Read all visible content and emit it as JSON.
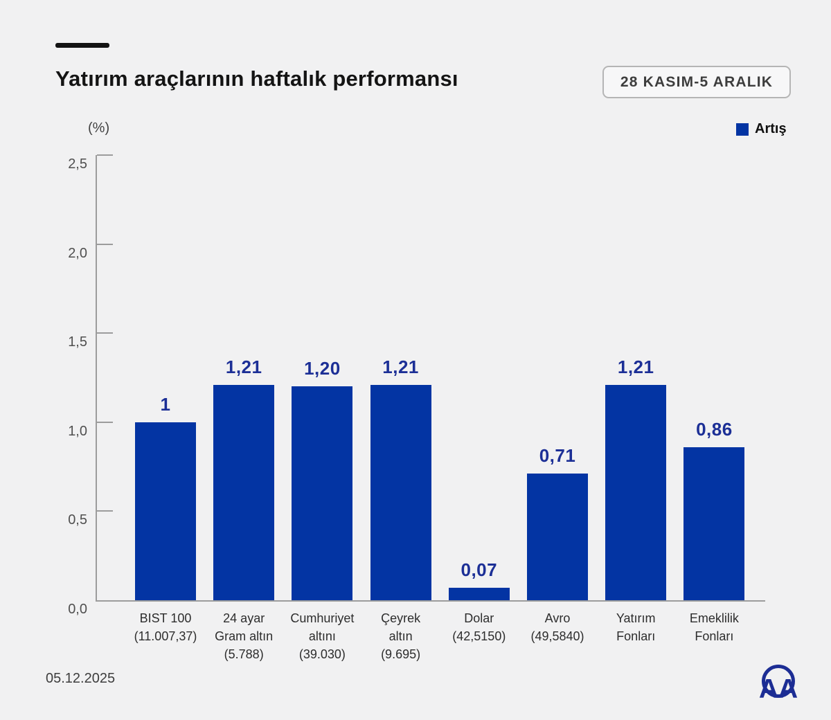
{
  "header": {
    "title": "Yatırım araçlarının haftalık performansı",
    "date_badge": "28 KASIM-5 ARALIK"
  },
  "legend": {
    "label": "Artış"
  },
  "chart_data": {
    "type": "bar",
    "title": "Yatırım araçlarının haftalık performansı",
    "subtitle": "28 KASIM-5 ARALIK",
    "unit_label": "(%)",
    "xlabel": "",
    "ylabel": "(%)",
    "ylim": [
      0,
      2.5
    ],
    "grid": false,
    "legend_position": "top-right",
    "yticks": [
      {
        "value": 0.0,
        "label": "0,0"
      },
      {
        "value": 0.5,
        "label": "0,5"
      },
      {
        "value": 1.0,
        "label": "1,0"
      },
      {
        "value": 1.5,
        "label": "1,5"
      },
      {
        "value": 2.0,
        "label": "2,0"
      },
      {
        "value": 2.5,
        "label": "2,5"
      }
    ],
    "series": [
      {
        "name": "Artış",
        "values": [
          1,
          1.21,
          1.2,
          1.21,
          0.07,
          0.71,
          1.21,
          0.86
        ]
      }
    ],
    "bars": [
      {
        "category_lines": [
          "BIST 100",
          "(11.007,37)"
        ],
        "value": 1.0,
        "value_label": "1"
      },
      {
        "category_lines": [
          "24 ayar",
          "Gram altın",
          "(5.788)"
        ],
        "value": 1.21,
        "value_label": "1,21"
      },
      {
        "category_lines": [
          "Cumhuriyet",
          "altını",
          "(39.030)"
        ],
        "value": 1.2,
        "value_label": "1,20"
      },
      {
        "category_lines": [
          "Çeyrek",
          "altın",
          "(9.695)"
        ],
        "value": 1.21,
        "value_label": "1,21"
      },
      {
        "category_lines": [
          "Dolar",
          "(42,5150)"
        ],
        "value": 0.07,
        "value_label": "0,07"
      },
      {
        "category_lines": [
          "Avro",
          "(49,5840)"
        ],
        "value": 0.71,
        "value_label": "0,71"
      },
      {
        "category_lines": [
          "Yatırım",
          "Fonları"
        ],
        "value": 1.21,
        "value_label": "1,21"
      },
      {
        "category_lines": [
          "Emeklilik",
          "Fonları"
        ],
        "value": 0.86,
        "value_label": "0,86"
      }
    ],
    "colors": {
      "bar": "#0334a3",
      "value_label": "#1c2f96",
      "axis": "#9c9c9c",
      "background": "#f1f1f2"
    }
  },
  "footer": {
    "date": "05.12.2025",
    "logo": "AA"
  }
}
